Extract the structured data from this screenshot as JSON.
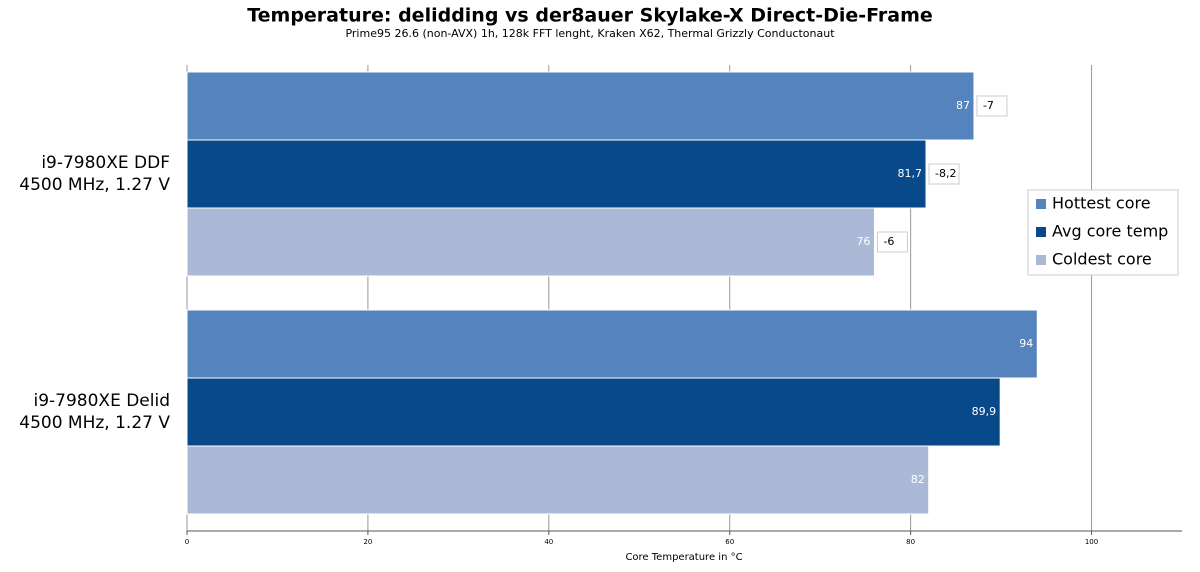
{
  "chart_data": {
    "type": "bar",
    "orientation": "horizontal",
    "title": "Temperature: delidding vs der8auer Skylake-X Direct-Die-Frame",
    "subtitle": "Prime95 26.6 (non-AVX) 1h, 128k FFT lenght, Kraken X62, Thermal Grizzly Conductonaut",
    "x_label": "Core Temperature in °C",
    "categories": [
      [
        "i9-7980XE DDF",
        "4500 MHz, 1.27 V"
      ],
      [
        "i9-7980XE Delid",
        "4500 MHz, 1.27 V"
      ]
    ],
    "series": [
      {
        "name": "Hottest core",
        "color": "#5583bd",
        "values": [
          87,
          94
        ],
        "deltas": [
          -7,
          null
        ]
      },
      {
        "name": "Avg core temp",
        "color": "#08498a",
        "values": [
          81.7,
          89.9
        ],
        "value_labels": [
          "81,7",
          "89,9"
        ],
        "deltas": [
          -8.2,
          null
        ],
        "delta_labels": [
          "-8,2",
          null
        ]
      },
      {
        "name": "Coldest core",
        "color": "#abb9d6",
        "values": [
          76,
          82
        ],
        "deltas": [
          -6,
          null
        ]
      }
    ],
    "xlim": [
      0,
      110
    ],
    "xticks": [
      0,
      20,
      40,
      60,
      80,
      100
    ],
    "grid": true,
    "legend": "right"
  }
}
